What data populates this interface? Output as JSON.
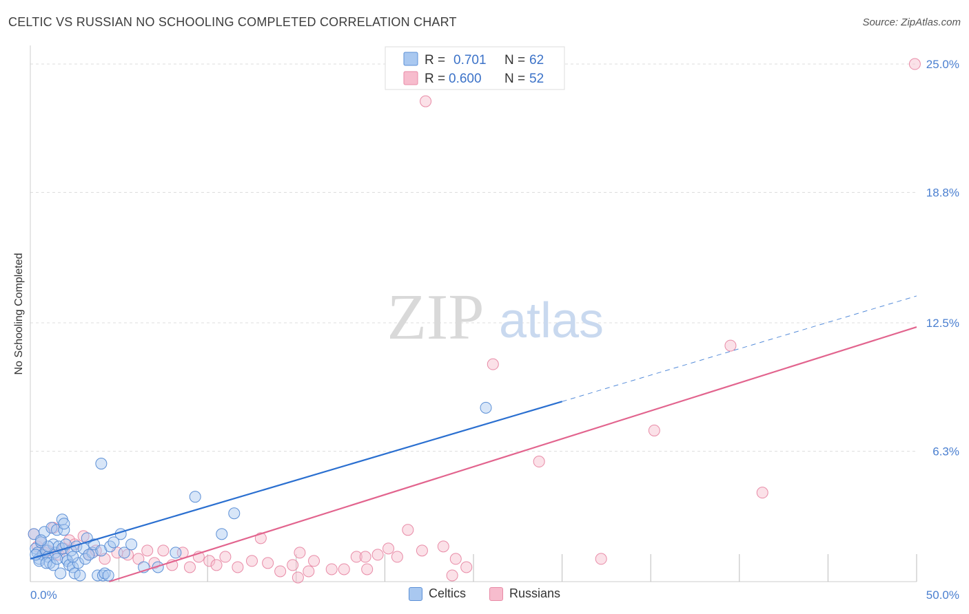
{
  "header": {
    "title": "CELTIC VS RUSSIAN NO SCHOOLING COMPLETED CORRELATION CHART",
    "source": "Source: ZipAtlas.com"
  },
  "watermark": {
    "zip": "ZIP",
    "atlas": "atlas"
  },
  "colors": {
    "celtic_fill": "#a9c8f0",
    "celtic_stroke": "#5b8fd6",
    "celtic_line": "#2a6fd0",
    "russian_fill": "#f7bccd",
    "russian_stroke": "#e88aa6",
    "russian_line": "#e2648e",
    "tick_text": "#4a7fd0",
    "grid": "#dddddd"
  },
  "chart_data": {
    "type": "scatter",
    "title": "CELTIC VS RUSSIAN NO SCHOOLING COMPLETED CORRELATION CHART",
    "ylabel": "No Schooling Completed",
    "xlabel": "",
    "xlim": [
      0,
      50
    ],
    "ylim": [
      0,
      25.5
    ],
    "x_tick_labels": [
      "0.0%",
      "50.0%"
    ],
    "y_ticks": [
      6.3,
      12.5,
      18.8,
      25.0
    ],
    "y_tick_labels": [
      "6.3%",
      "12.5%",
      "18.8%",
      "25.0%"
    ],
    "legend": [
      {
        "series": "Celtics",
        "r_label": "R =",
        "r": "0.701",
        "n_label": "N =",
        "n": "62"
      },
      {
        "series": "Russians",
        "r_label": "R =",
        "r": "0.600",
        "n_label": "N =",
        "n": "52"
      }
    ],
    "series": [
      {
        "name": "Celtics",
        "trend": {
          "x0": 0.0,
          "y0": 1.1,
          "x1": 30.0,
          "y1": 8.7,
          "dash_to_x": 50.0,
          "dash_to_y": 13.8
        },
        "points": [
          [
            0.2,
            2.3
          ],
          [
            0.3,
            1.6
          ],
          [
            0.4,
            1.4
          ],
          [
            0.5,
            1.1
          ],
          [
            0.6,
            1.9
          ],
          [
            0.7,
            1.3
          ],
          [
            0.8,
            2.4
          ],
          [
            0.9,
            1.5
          ],
          [
            1.0,
            1.2
          ],
          [
            1.1,
            0.9
          ],
          [
            1.2,
            2.6
          ],
          [
            1.3,
            1.8
          ],
          [
            1.4,
            1.4
          ],
          [
            1.5,
            2.5
          ],
          [
            1.6,
            1.7
          ],
          [
            1.7,
            0.4
          ],
          [
            1.8,
            1.6
          ],
          [
            1.9,
            2.5
          ],
          [
            2.0,
            1.1
          ],
          [
            2.1,
            1.0
          ],
          [
            2.2,
            0.8
          ],
          [
            1.8,
            3.0
          ],
          [
            1.9,
            2.8
          ],
          [
            2.3,
            1.5
          ],
          [
            2.4,
            0.7
          ],
          [
            2.5,
            0.4
          ],
          [
            2.6,
            1.7
          ],
          [
            2.7,
            0.9
          ],
          [
            2.8,
            0.3
          ],
          [
            3.0,
            1.6
          ],
          [
            3.1,
            1.1
          ],
          [
            3.2,
            2.1
          ],
          [
            3.5,
            1.4
          ],
          [
            3.6,
            1.8
          ],
          [
            3.8,
            0.3
          ],
          [
            4.0,
            1.5
          ],
          [
            4.1,
            0.3
          ],
          [
            4.2,
            0.4
          ],
          [
            0.5,
            1.0
          ],
          [
            0.9,
            0.9
          ],
          [
            1.0,
            1.7
          ],
          [
            1.3,
            0.8
          ],
          [
            1.5,
            1.1
          ],
          [
            2.0,
            1.8
          ],
          [
            2.4,
            1.2
          ],
          [
            3.3,
            1.3
          ],
          [
            4.5,
            1.7
          ],
          [
            5.3,
            1.4
          ],
          [
            4.0,
            5.7
          ],
          [
            5.1,
            2.3
          ],
          [
            4.4,
            0.3
          ],
          [
            4.7,
            1.9
          ],
          [
            6.4,
            0.7
          ],
          [
            5.7,
            1.8
          ],
          [
            7.2,
            0.7
          ],
          [
            9.3,
            4.1
          ],
          [
            11.5,
            3.3
          ],
          [
            10.8,
            2.3
          ],
          [
            8.2,
            1.4
          ],
          [
            25.7,
            8.4
          ],
          [
            0.3,
            1.3
          ],
          [
            0.6,
            2.0
          ]
        ]
      },
      {
        "name": "Russians",
        "trend": {
          "x0": 0.0,
          "y0": -1.2,
          "x1": 50.0,
          "y1": 12.3
        },
        "points": [
          [
            0.2,
            2.3
          ],
          [
            0.4,
            1.7
          ],
          [
            0.6,
            1.9
          ],
          [
            0.8,
            1.4
          ],
          [
            1.0,
            1.5
          ],
          [
            1.3,
            2.6
          ],
          [
            1.6,
            1.3
          ],
          [
            1.9,
            1.6
          ],
          [
            2.2,
            2.0
          ],
          [
            2.5,
            1.8
          ],
          [
            3.0,
            2.2
          ],
          [
            3.3,
            1.3
          ],
          [
            3.7,
            1.5
          ],
          [
            4.2,
            1.1
          ],
          [
            4.9,
            1.4
          ],
          [
            5.5,
            1.3
          ],
          [
            6.1,
            1.1
          ],
          [
            6.6,
            1.5
          ],
          [
            7.0,
            0.9
          ],
          [
            7.5,
            1.5
          ],
          [
            8.0,
            0.8
          ],
          [
            8.6,
            1.4
          ],
          [
            9.0,
            0.7
          ],
          [
            9.5,
            1.2
          ],
          [
            10.1,
            1.0
          ],
          [
            10.5,
            0.8
          ],
          [
            11.0,
            1.2
          ],
          [
            11.7,
            0.7
          ],
          [
            12.5,
            1.0
          ],
          [
            13.0,
            2.1
          ],
          [
            13.4,
            0.9
          ],
          [
            14.1,
            0.5
          ],
          [
            14.8,
            0.8
          ],
          [
            15.2,
            1.4
          ],
          [
            15.7,
            0.5
          ],
          [
            16.0,
            1.0
          ],
          [
            17.0,
            0.6
          ],
          [
            17.7,
            0.6
          ],
          [
            18.4,
            1.2
          ],
          [
            18.9,
            1.2
          ],
          [
            19.0,
            0.6
          ],
          [
            19.6,
            1.3
          ],
          [
            20.2,
            1.6
          ],
          [
            20.7,
            1.2
          ],
          [
            21.3,
            2.5
          ],
          [
            22.1,
            1.5
          ],
          [
            23.3,
            1.7
          ],
          [
            24.0,
            1.1
          ],
          [
            24.6,
            0.7
          ],
          [
            26.1,
            10.5
          ],
          [
            28.7,
            5.8
          ],
          [
            32.2,
            1.1
          ]
        ],
        "outliers": [
          [
            22.3,
            23.2
          ],
          [
            49.9,
            25.0
          ],
          [
            35.2,
            7.3
          ],
          [
            39.5,
            11.4
          ],
          [
            41.3,
            4.3
          ],
          [
            15.1,
            0.2
          ],
          [
            23.8,
            0.3
          ]
        ]
      }
    ]
  },
  "bottom_legend": [
    {
      "label": "Celtics"
    },
    {
      "label": "Russians"
    }
  ]
}
